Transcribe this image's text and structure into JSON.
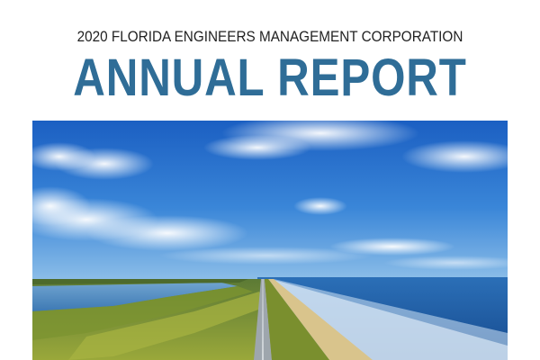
{
  "report": {
    "subtitle": "2020 FLORIDA ENGINEERS MANAGEMENT CORPORATION",
    "title": "ANNUAL REPORT"
  },
  "cover_photo": {
    "content": "aerial-coastal-road-photo"
  },
  "colors": {
    "title": "#2f6d97",
    "subtitle": "#222222",
    "sky": "#2a6fc9",
    "ocean": "#1f5aa8",
    "land": "#6f8b2c"
  }
}
